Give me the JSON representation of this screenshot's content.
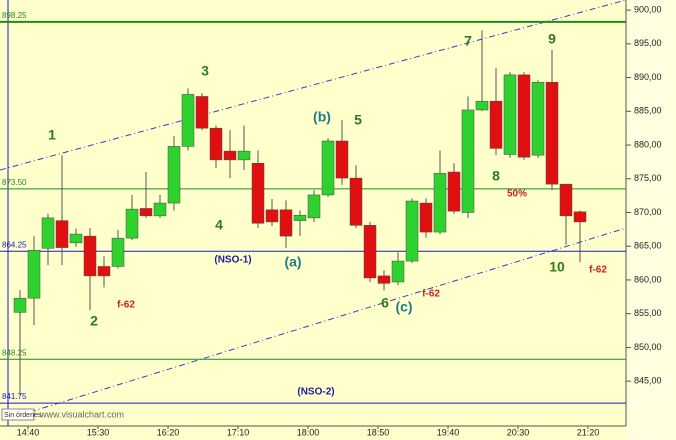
{
  "chart_data": {
    "type": "candlestick",
    "categories": [
      null,
      "14:40",
      null,
      null,
      null,
      null,
      "15:30",
      null,
      null,
      null,
      null,
      "16:20",
      null,
      null,
      null,
      null,
      "17:10",
      null,
      null,
      null,
      null,
      "18:00",
      null,
      null,
      null,
      null,
      "18:50",
      null,
      null,
      null,
      null,
      "19:40",
      null,
      null,
      null,
      null,
      "20:30",
      null,
      null,
      null,
      null,
      "21:20"
    ],
    "open": [
      855.2,
      857.3,
      864.7,
      868.8,
      865.5,
      866.5,
      862.0,
      862.0,
      866.2,
      870.6,
      869.5,
      871.4,
      879.8,
      887.2,
      882.5,
      879.1,
      877.8,
      877.3,
      870.4,
      870.4,
      868.8,
      869.2,
      872.6,
      880.6,
      875.1,
      868.1,
      860.6,
      859.7,
      862.8,
      871.4,
      867.1,
      876.0,
      870.0,
      885.2,
      886.5,
      878.6,
      890.4,
      878.5,
      889.3,
      874.2,
      870.1,
      null
    ],
    "high": [
      858.5,
      866.5,
      869.8,
      878.5,
      867.6,
      867.7,
      863.5,
      867.4,
      872.6,
      876.0,
      872.6,
      881.3,
      888.4,
      887.7,
      882.9,
      882.2,
      882.9,
      879.2,
      872.0,
      871.8,
      870.3,
      873.3,
      881.0,
      883.7,
      877.0,
      868.6,
      861.4,
      864.1,
      872.1,
      872.1,
      879.2,
      877.3,
      887.2,
      897.0,
      891.4,
      890.8,
      890.8,
      889.6,
      894.1,
      874.2,
      870.3,
      null
    ],
    "low": [
      842.9,
      853.3,
      862.2,
      862.2,
      864.9,
      855.5,
      858.9,
      861.7,
      865.9,
      869.2,
      869.2,
      870.3,
      879.2,
      882.2,
      876.6,
      875.1,
      876.3,
      867.7,
      868.0,
      864.7,
      866.5,
      868.6,
      872.3,
      874.1,
      867.7,
      859.7,
      858.5,
      859.2,
      862.5,
      866.3,
      866.8,
      869.8,
      869.2,
      885.0,
      878.5,
      878.1,
      877.8,
      878.1,
      873.3,
      865.2,
      862.6,
      null
    ],
    "close": [
      857.3,
      864.4,
      869.2,
      864.8,
      866.8,
      860.6,
      860.6,
      866.2,
      870.5,
      869.5,
      871.4,
      879.8,
      887.5,
      882.5,
      877.8,
      877.8,
      879.1,
      868.4,
      868.6,
      866.5,
      869.6,
      872.6,
      880.6,
      875.1,
      868.1,
      860.3,
      859.5,
      862.8,
      871.7,
      867.1,
      875.8,
      870.2,
      885.2,
      886.5,
      879.5,
      890.4,
      878.2,
      889.3,
      874.2,
      869.5,
      868.6,
      null
    ],
    "up_color": "#2fd12f",
    "down_color": "#e01010",
    "ylim": [
      838.5,
      901.5
    ],
    "yticks": [
      {
        "value": 900,
        "label": "900,00"
      },
      {
        "value": 895,
        "label": "895,00"
      },
      {
        "value": 890,
        "label": "890,00"
      },
      {
        "value": 885,
        "label": "885,00"
      },
      {
        "value": 880,
        "label": "880,00"
      },
      {
        "value": 875,
        "label": "875,00"
      },
      {
        "value": 870,
        "label": "870,00"
      },
      {
        "value": 865,
        "label": "865,00"
      },
      {
        "value": 860,
        "label": "860,00"
      },
      {
        "value": 855,
        "label": "855,00"
      },
      {
        "value": 850,
        "label": "850,00"
      },
      {
        "value": 845,
        "label": "845,00"
      }
    ],
    "levels": [
      {
        "value": 898.25,
        "color": "#1f8a1f"
      },
      {
        "value": {
          "value": 873.5,
          "label": "873.50"
        },
        "color": "#1f8a1f"
      },
      {
        "value": 864.25,
        "color": "#1a1acc"
      },
      {
        "value": 848.25,
        "color": "#1f8a1f"
      },
      {
        "value": 841.75,
        "color": "#1a1acc"
      }
    ],
    "annotations": [
      {
        "text": "1",
        "color": "#2e7d1a"
      },
      {
        "text": "2",
        "color": "#2e7d1a"
      },
      {
        "text": "3",
        "color": "#2e7d1a"
      },
      {
        "text": "4",
        "color": "#2e7d1a"
      },
      {
        "text": "5",
        "color": "#2e7d1a"
      },
      {
        "text": "6",
        "color": "#2e7d1a"
      },
      {
        "text": "7",
        "color": "#2e7d1a"
      },
      {
        "text": "8",
        "color": "#2e7d1a"
      },
      {
        "text": "9",
        "color": "#2e7d1a"
      },
      {
        "text": "10",
        "color": "#2e7d1a"
      },
      {
        "text": "(a)",
        "color": "#1f7a8c"
      },
      {
        "text": "(b)",
        "color": "#1f7a8c"
      },
      {
        "text": "(c)",
        "color": "#1f7a8c"
      },
      {
        "text": "(NSO-1)",
        "color": "#1a1aa0"
      },
      {
        "text": "(NSO-2)",
        "color": "#1a1aa0"
      },
      {
        "text": "f-62",
        "color": "#cc2020"
      },
      {
        "text": "f-62",
        "color": "#cc2020"
      },
      {
        "text": "f-62",
        "color": "#cc2020"
      },
      {
        "text": "50%",
        "color": "#cc2020"
      }
    ],
    "status": "Sin órdenes",
    "watermark": "www.visualchart.com"
  }
}
